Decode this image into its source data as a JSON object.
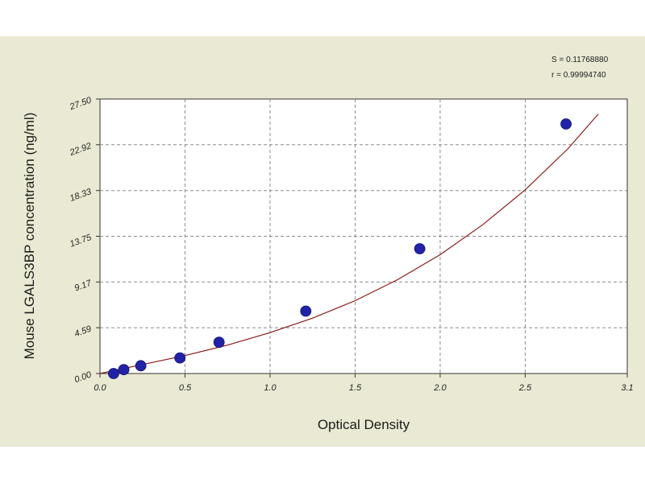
{
  "chart_data": {
    "type": "scatter",
    "title": "",
    "xlabel": "Optical Density",
    "ylabel": "Mouse LGALS3BP concentration (ng/ml)",
    "xlim": [
      0.0,
      3.1
    ],
    "ylim": [
      0.0,
      27.5
    ],
    "x_ticks": [
      0.0,
      0.5,
      1.0,
      1.5,
      2.0,
      2.5,
      3.1
    ],
    "x_tick_labels": [
      "0.0",
      "0.5",
      "1.0",
      "1.5",
      "2.0",
      "2.5",
      "3.1"
    ],
    "y_ticks": [
      0.0,
      4.59,
      9.17,
      13.75,
      18.33,
      22.92,
      27.5
    ],
    "y_tick_labels": [
      "0.00",
      "4.59",
      "9.17",
      "13.75",
      "18.33",
      "22.92",
      "27.50"
    ],
    "grid": true,
    "points": {
      "x": [
        0.08,
        0.14,
        0.24,
        0.47,
        0.7,
        1.21,
        1.88,
        2.74
      ],
      "y": [
        0.0,
        0.39,
        0.78,
        1.56,
        3.13,
        6.25,
        12.5,
        25.0
      ]
    },
    "fit_curve": {
      "x": [
        0.0,
        0.25,
        0.5,
        0.75,
        1.0,
        1.25,
        1.5,
        1.75,
        2.0,
        2.25,
        2.5,
        2.75,
        2.93
      ],
      "y": [
        0.0,
        0.9,
        1.8,
        2.85,
        4.1,
        5.55,
        7.3,
        9.4,
        11.9,
        14.9,
        18.4,
        22.5,
        26.0
      ]
    },
    "stats": {
      "s_line": "S = 0.11768880",
      "r_line": "r = 0.99994740"
    },
    "colors": {
      "background": "#eaead4",
      "plot_area": "#ffffff",
      "grid": "#8c8c8c",
      "curve": "#8b1a1a",
      "points": "#2222a8"
    }
  }
}
